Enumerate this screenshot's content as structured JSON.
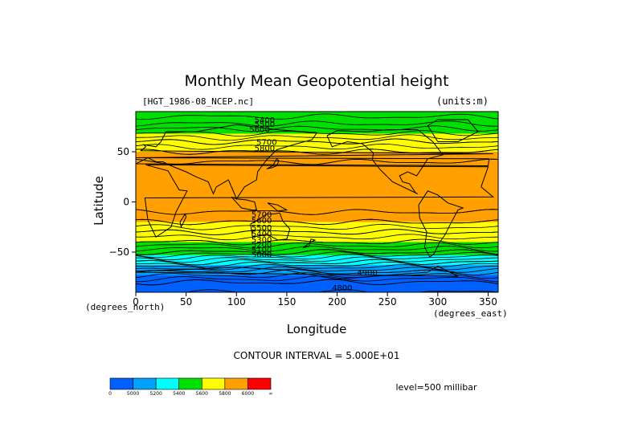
{
  "chart_data": {
    "type": "heatmap",
    "title": "Monthly Mean Geopotential height",
    "subtitle_left": "[HGT_1986-08_NCEP.nc]",
    "subtitle_right": "(units:m)",
    "xlabel": "Longitude",
    "ylabel": "Latitude",
    "x_unit_label": "(degrees_east)",
    "y_unit_label": "(degrees_north)",
    "xlim": [
      0,
      360
    ],
    "ylim": [
      -90,
      90
    ],
    "x_ticks": [
      0,
      50,
      100,
      150,
      200,
      250,
      300,
      350
    ],
    "y_ticks": [
      50,
      0,
      -50
    ],
    "y_tick_labels": [
      "50",
      "0",
      "−50"
    ],
    "contour_interval_text": "CONTOUR INTERVAL = 5.000E+01",
    "level_text": "level=500 millibar",
    "contour_labels": [
      "5400",
      "5500",
      "5600",
      "5700",
      "5800",
      "5700",
      "5600",
      "5500",
      "5400",
      "5300",
      "5200",
      "5100",
      "5000",
      "4900",
      "4800"
    ],
    "colorbar": {
      "tick_labels": [
        "0",
        "5000",
        "5200",
        "5400",
        "5600",
        "5800",
        "6000",
        "∞"
      ],
      "colors": [
        "#0060ff",
        "#00a0ff",
        "#00ffff",
        "#00e000",
        "#ffff00",
        "#ffa000",
        "#ff0000"
      ]
    },
    "series": [
      {
        "name": "",
        "lat": [
          90,
          80,
          70,
          60,
          50,
          40,
          30,
          20,
          10,
          0,
          -10,
          -20,
          -30,
          -40,
          -50,
          -60,
          -70,
          -80,
          -90
        ],
        "values": [
          5420,
          5480,
          5580,
          5700,
          5800,
          5850,
          5880,
          5890,
          5880,
          5870,
          5850,
          5800,
          5700,
          5600,
          5450,
          5250,
          5050,
          4900,
          4850
        ]
      }
    ],
    "grid": false,
    "legend_placement": "bottom-left colorbar"
  }
}
